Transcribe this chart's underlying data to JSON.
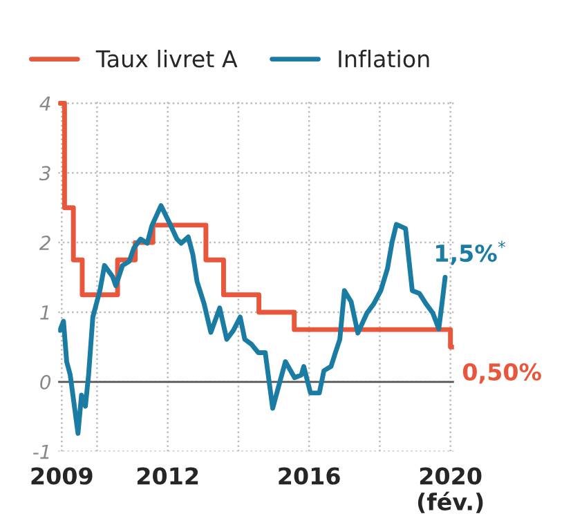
{
  "chart_data": {
    "type": "line",
    "series": [
      {
        "name": "Taux livret A",
        "type": "step",
        "color": "#e8573c",
        "x": [
          2008.95,
          2009.08,
          2009.33,
          2009.58,
          2010.58,
          2011.08,
          2011.58,
          2013.08,
          2013.58,
          2014.58,
          2015.58,
          2020.0,
          2020.08
        ],
        "values": [
          4,
          2.5,
          1.75,
          1.25,
          1.75,
          2,
          2.25,
          1.75,
          1.25,
          1,
          0.75,
          0.5,
          0.5
        ]
      },
      {
        "name": "Inflation",
        "color": "#1a7ba3",
        "x": [
          2008.95,
          2009.05,
          2009.14,
          2009.24,
          2009.46,
          2009.56,
          2009.67,
          2009.76,
          2009.88,
          2010.08,
          2010.21,
          2010.44,
          2010.53,
          2010.72,
          2010.91,
          2011.04,
          2011.23,
          2011.42,
          2011.55,
          2011.81,
          2012.06,
          2012.26,
          2012.38,
          2012.58,
          2012.71,
          2012.83,
          2013.03,
          2013.22,
          2013.47,
          2013.67,
          2013.86,
          2014.05,
          2014.18,
          2014.37,
          2014.56,
          2014.76,
          2014.97,
          2015.14,
          2015.33,
          2015.59,
          2015.78,
          2015.85,
          2016.04,
          2016.29,
          2016.42,
          2016.62,
          2016.74,
          2016.87,
          2017.0,
          2017.19,
          2017.38,
          2017.64,
          2017.83,
          2018.03,
          2018.22,
          2018.35,
          2018.47,
          2018.73,
          2018.92,
          2019.12,
          2019.31,
          2019.5,
          2019.67,
          2019.76,
          2019.85
        ],
        "values": [
          0.74,
          0.87,
          0.29,
          0.1,
          -0.74,
          -0.19,
          -0.35,
          0.1,
          0.93,
          1.31,
          1.67,
          1.51,
          1.38,
          1.67,
          1.73,
          1.92,
          2.05,
          1.99,
          2.24,
          2.53,
          2.27,
          2.05,
          1.99,
          2.08,
          1.83,
          1.44,
          1.12,
          0.71,
          1.06,
          0.61,
          0.74,
          0.93,
          0.61,
          0.54,
          0.42,
          0.42,
          -0.38,
          -0.06,
          0.29,
          0.06,
          0.1,
          0.22,
          -0.16,
          -0.16,
          0.16,
          0.22,
          0.41,
          0.61,
          1.31,
          1.15,
          0.7,
          0.99,
          1.12,
          1.31,
          1.63,
          2.01,
          2.26,
          2.2,
          1.31,
          1.27,
          1.12,
          0.99,
          0.76,
          1.12,
          1.5
        ]
      }
    ],
    "xlim": [
      2008.9,
      2020.1
    ],
    "xticks": [
      2009,
      {
        "value": 2010,
        "label": null
      },
      2012,
      {
        "value": 2014,
        "label": null
      },
      2016,
      {
        "value": 2018,
        "label": null
      },
      {
        "value": 2020,
        "label": "2020\n(fév.)"
      }
    ],
    "ylim": [
      -1,
      4.05
    ],
    "yticks": [
      -1,
      0,
      1,
      2,
      3,
      4
    ],
    "ref_lines": [
      {
        "axis": "y",
        "value": 0,
        "color": "#555555"
      }
    ],
    "annotations": [
      {
        "text": "1,5%$^{*}$",
        "x": 2019.85,
        "y": 1.5
      },
      {
        "text": "0,50%",
        "x": 2020.0,
        "y": 0.5
      }
    ],
    "grid": true,
    "legend": "top"
  }
}
